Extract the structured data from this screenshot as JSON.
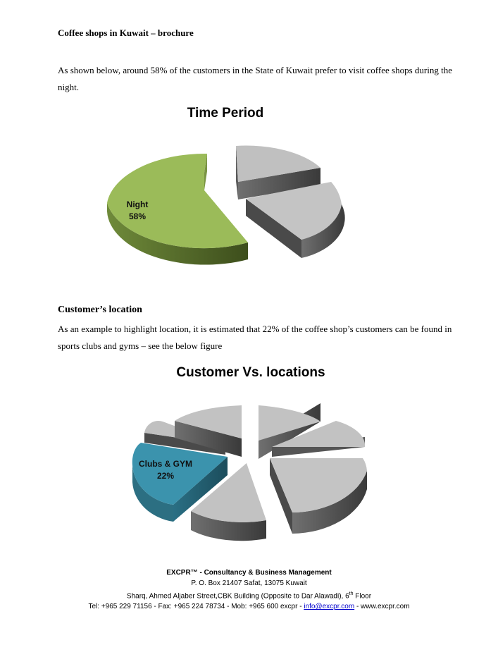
{
  "doc": {
    "title": "Coffee shops in Kuwait – brochure",
    "para1": "As shown below, around 58% of the customers in the State of Kuwait prefer to visit coffee shops during the night.",
    "section_heading": "Customer’s location",
    "para2": "As an example to highlight location, it is estimated that 22% of the coffee shop’s customers can be found in sports clubs and gyms – see the below figure"
  },
  "chart_data": [
    {
      "type": "pie",
      "title": "Time Period",
      "highlight": {
        "label": "Night",
        "value": "58%",
        "color": "#9bbb59"
      },
      "slices": [
        {
          "label": "Night",
          "value": 58,
          "color": "#9bbb59"
        },
        {
          "label": "",
          "value": 25,
          "color": "#bfbfbf"
        },
        {
          "label": "",
          "value": 17,
          "color": "#bfbfbf"
        }
      ]
    },
    {
      "type": "pie",
      "title": "Customer Vs. locations",
      "highlight": {
        "label": "Clubs & GYM",
        "value": "22%",
        "color": "#3b93ad"
      },
      "slices": [
        {
          "label": "Clubs & GYM",
          "value": 22,
          "color": "#3b93ad"
        }
      ]
    }
  ],
  "footer": {
    "company": "EXCPR™ - Consultancy & Business Management",
    "po_box": "P. O. Box 21407 Safat, 13075 Kuwait",
    "address_main": "Sharq, Ahmed Aljaber Street,CBK Building (Opposite to Dar Alawadi), 6",
    "address_sup": "th",
    "address_end": " Floor",
    "contact_prefix": "Tel: +965 229 71156 - Fax: +965 224 78734 - Mob: +965 600 excpr  - ",
    "email": "info@excpr.com",
    "contact_suffix": " - www.excpr.com"
  }
}
